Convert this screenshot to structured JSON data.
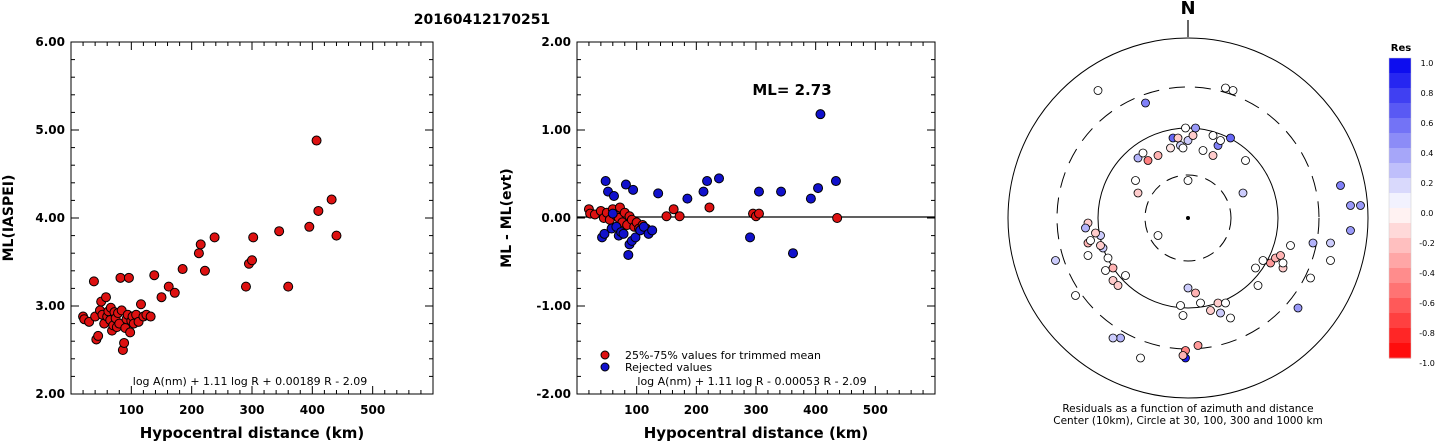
{
  "page_title": "20160412170251",
  "chart_data": [
    {
      "type": "scatter",
      "xlabel": "Hypocentral distance (km)",
      "ylabel": "ML(IASPEI)",
      "xlim": [
        0,
        600
      ],
      "ylim": [
        2.0,
        6.0
      ],
      "x_ticks": [
        "100",
        "200",
        "300",
        "400",
        "500"
      ],
      "y_ticks": [
        "2.00",
        "3.00",
        "4.00",
        "5.00",
        "6.00"
      ],
      "formula": "log A(nm) + 1.11 log R + 0.00189 R - 2.09",
      "marker_color": "#dd1111",
      "points": [
        [
          20,
          2.88
        ],
        [
          22,
          2.85
        ],
        [
          30,
          2.82
        ],
        [
          40,
          2.88
        ],
        [
          42,
          2.62
        ],
        [
          45,
          2.66
        ],
        [
          48,
          2.95
        ],
        [
          50,
          3.05
        ],
        [
          52,
          2.9
        ],
        [
          55,
          2.8
        ],
        [
          58,
          3.1
        ],
        [
          60,
          2.88
        ],
        [
          62,
          2.94
        ],
        [
          65,
          2.84
        ],
        [
          66,
          2.98
        ],
        [
          68,
          2.72
        ],
        [
          70,
          2.78
        ],
        [
          72,
          2.93
        ],
        [
          74,
          2.86
        ],
        [
          76,
          2.76
        ],
        [
          78,
          2.92
        ],
        [
          80,
          2.8
        ],
        [
          82,
          3.32
        ],
        [
          84,
          2.95
        ],
        [
          86,
          2.5
        ],
        [
          88,
          2.58
        ],
        [
          90,
          2.75
        ],
        [
          92,
          2.85
        ],
        [
          94,
          2.9
        ],
        [
          96,
          3.32
        ],
        [
          98,
          2.7
        ],
        [
          100,
          2.83
        ],
        [
          102,
          2.88
        ],
        [
          104,
          2.8
        ],
        [
          108,
          2.9
        ],
        [
          112,
          2.82
        ],
        [
          116,
          3.02
        ],
        [
          120,
          2.88
        ],
        [
          125,
          2.9
        ],
        [
          132,
          2.88
        ],
        [
          138,
          3.35
        ],
        [
          150,
          3.1
        ],
        [
          162,
          3.22
        ],
        [
          172,
          3.15
        ],
        [
          185,
          3.42
        ],
        [
          212,
          3.6
        ],
        [
          215,
          3.7
        ],
        [
          222,
          3.4
        ],
        [
          238,
          3.78
        ],
        [
          290,
          3.22
        ],
        [
          295,
          3.48
        ],
        [
          300,
          3.52
        ],
        [
          302,
          3.78
        ],
        [
          345,
          3.85
        ],
        [
          360,
          3.22
        ],
        [
          395,
          3.9
        ],
        [
          407,
          4.88
        ],
        [
          410,
          4.08
        ],
        [
          432,
          4.21
        ],
        [
          440,
          3.8
        ],
        [
          38,
          3.28
        ]
      ]
    },
    {
      "type": "scatter",
      "xlabel": "Hypocentral distance (km)",
      "ylabel": "ML - ML(evt)",
      "xlim": [
        0,
        600
      ],
      "ylim": [
        -2.0,
        2.0
      ],
      "x_ticks": [
        "100",
        "200",
        "300",
        "400",
        "500"
      ],
      "y_ticks": [
        "-2.00",
        "-1.00",
        "0.00",
        "1.00",
        "2.00"
      ],
      "annotation": "ML= 2.73",
      "formula": "log A(nm) + 1.11 log R - 0.00053 R - 2.09",
      "legend": [
        "25%-75% values for trimmed mean",
        "Rejected values"
      ],
      "series": [
        {
          "name": "25%-75% values for trimmed mean",
          "color": "#dd1111",
          "points": [
            [
              20,
              0.1
            ],
            [
              22,
              0.05
            ],
            [
              30,
              0.04
            ],
            [
              40,
              0.08
            ],
            [
              45,
              0.0
            ],
            [
              50,
              0.06
            ],
            [
              55,
              -0.02
            ],
            [
              60,
              0.1
            ],
            [
              65,
              0.03
            ],
            [
              70,
              0.0
            ],
            [
              72,
              0.12
            ],
            [
              76,
              -0.05
            ],
            [
              80,
              0.06
            ],
            [
              84,
              -0.08
            ],
            [
              88,
              0.02
            ],
            [
              92,
              -0.02
            ],
            [
              96,
              -0.1
            ],
            [
              100,
              -0.05
            ],
            [
              104,
              -0.12
            ],
            [
              110,
              -0.08
            ],
            [
              116,
              -0.12
            ],
            [
              150,
              0.02
            ],
            [
              162,
              0.1
            ],
            [
              172,
              0.02
            ],
            [
              222,
              0.12
            ],
            [
              295,
              0.05
            ],
            [
              300,
              0.02
            ],
            [
              305,
              0.05
            ],
            [
              436,
              0.0
            ]
          ]
        },
        {
          "name": "Rejected values",
          "color": "#1111cc",
          "points": [
            [
              42,
              -0.22
            ],
            [
              46,
              -0.18
            ],
            [
              48,
              0.42
            ],
            [
              52,
              0.3
            ],
            [
              58,
              -0.12
            ],
            [
              62,
              0.25
            ],
            [
              66,
              -0.1
            ],
            [
              70,
              -0.2
            ],
            [
              74,
              -0.16
            ],
            [
              78,
              -0.18
            ],
            [
              82,
              0.38
            ],
            [
              86,
              -0.42
            ],
            [
              88,
              -0.3
            ],
            [
              92,
              -0.26
            ],
            [
              94,
              0.32
            ],
            [
              98,
              -0.22
            ],
            [
              106,
              -0.14
            ],
            [
              112,
              -0.1
            ],
            [
              120,
              -0.18
            ],
            [
              126,
              -0.14
            ],
            [
              136,
              0.28
            ],
            [
              185,
              0.22
            ],
            [
              212,
              0.3
            ],
            [
              218,
              0.42
            ],
            [
              238,
              0.45
            ],
            [
              290,
              -0.22
            ],
            [
              305,
              0.3
            ],
            [
              342,
              0.3
            ],
            [
              362,
              -0.4
            ],
            [
              392,
              0.22
            ],
            [
              404,
              0.34
            ],
            [
              408,
              1.18
            ],
            [
              434,
              0.42
            ],
            [
              60,
              0.05
            ]
          ]
        }
      ]
    },
    {
      "type": "polar-scatter",
      "north_label": "N",
      "caption": "Residuals as a function of azimuth and distance",
      "caption2": "Center (10km), Circle at 30, 100, 300 and 1000 km",
      "colorbar_title": "Res",
      "colorbar_ticks": [
        "1.0",
        "0.8",
        "0.6",
        "0.4",
        "0.2",
        "0.0",
        "-0.2",
        "-0.4",
        "-0.6",
        "-0.8",
        "-1.0"
      ],
      "positive_color": "#0000ee",
      "negative_color": "#ff0000",
      "points": [
        [
          0,
          31,
          0.2
        ],
        [
          3,
          36,
          0.4
        ],
        [
          -3,
          29,
          0.2
        ],
        [
          -6,
          32,
          0.6
        ],
        [
          -12,
          25,
          -0.3
        ],
        [
          -16,
          23,
          -0.5
        ],
        [
          -20,
          10,
          -0.2
        ],
        [
          -21,
          15,
          0.0
        ],
        [
          -20,
          24,
          0.3
        ],
        [
          -18,
          26,
          0.0
        ],
        [
          -7,
          28,
          -0.1
        ],
        [
          10,
          25,
          -0.2
        ],
        [
          12,
          29,
          0.5
        ],
        [
          13,
          31,
          0.0
        ],
        [
          17,
          32,
          0.6
        ],
        [
          10,
          33,
          0.0
        ],
        [
          2,
          33,
          -0.2
        ],
        [
          -4,
          32,
          -0.2
        ],
        [
          -2,
          28,
          0.0
        ],
        [
          6,
          27,
          0.0
        ],
        [
          0,
          15,
          0.0
        ],
        [
          22,
          10,
          0.2
        ],
        [
          -40,
          -10,
          -0.3
        ],
        [
          -35,
          -7,
          0.2
        ],
        [
          -34,
          -12,
          0.2
        ],
        [
          -37,
          -6,
          -0.2
        ],
        [
          -39,
          -9,
          0.0
        ],
        [
          -32,
          -16,
          0.0
        ],
        [
          -30,
          -25,
          -0.2
        ],
        [
          -40,
          -2,
          -0.2
        ],
        [
          -33,
          -21,
          0.0
        ],
        [
          -30,
          -20,
          -0.3
        ],
        [
          -41,
          -4,
          0.3
        ],
        [
          -35,
          -11,
          -0.2
        ],
        [
          -40,
          -15,
          0.0
        ],
        [
          -53,
          -17,
          0.2
        ],
        [
          -12,
          -7,
          0.0
        ],
        [
          -25,
          -23,
          0.0
        ],
        [
          -28,
          -27,
          -0.2
        ],
        [
          0,
          -28,
          0.2
        ],
        [
          3,
          -30,
          -0.3
        ],
        [
          -3,
          -35,
          0.0
        ],
        [
          9,
          -37,
          -0.2
        ],
        [
          5,
          -34,
          0.0
        ],
        [
          12,
          -34,
          -0.2
        ],
        [
          15,
          -34,
          0.0
        ],
        [
          13,
          -38,
          0.2
        ],
        [
          17,
          -40,
          0.0
        ],
        [
          -2,
          -39,
          0.0
        ],
        [
          4,
          -51,
          -0.4
        ],
        [
          -1,
          -53,
          -0.5
        ],
        [
          -1,
          -56,
          0.9
        ],
        [
          -2,
          -55,
          -0.3
        ],
        [
          27,
          -20,
          0.0
        ],
        [
          33,
          -18,
          -0.4
        ],
        [
          30,
          -17,
          0.0
        ],
        [
          35,
          -16,
          -0.3
        ],
        [
          38,
          -20,
          -0.2
        ],
        [
          37,
          -15,
          -0.3
        ],
        [
          38,
          -18,
          0.0
        ],
        [
          28,
          -27,
          0.0
        ],
        [
          50,
          -10,
          0.3
        ],
        [
          57,
          -10,
          0.2
        ],
        [
          65,
          -5,
          0.4
        ],
        [
          57,
          -17,
          0.0
        ],
        [
          49,
          -24,
          0.0
        ],
        [
          44,
          -36,
          0.4
        ],
        [
          61,
          13,
          0.5
        ],
        [
          65,
          5,
          0.4
        ],
        [
          69,
          5,
          0.4
        ],
        [
          41,
          -11,
          0.0
        ],
        [
          23,
          23,
          0.0
        ],
        [
          -1,
          36,
          0.0
        ],
        [
          -17,
          46,
          0.5
        ],
        [
          15,
          52,
          0.0
        ],
        [
          18,
          51,
          0.0
        ],
        [
          -36,
          51,
          0.0
        ],
        [
          -19,
          -56,
          0.0
        ],
        [
          -27,
          -48,
          0.3
        ],
        [
          -30,
          -48,
          0.2
        ],
        [
          -45,
          -31,
          0.0
        ]
      ]
    }
  ]
}
